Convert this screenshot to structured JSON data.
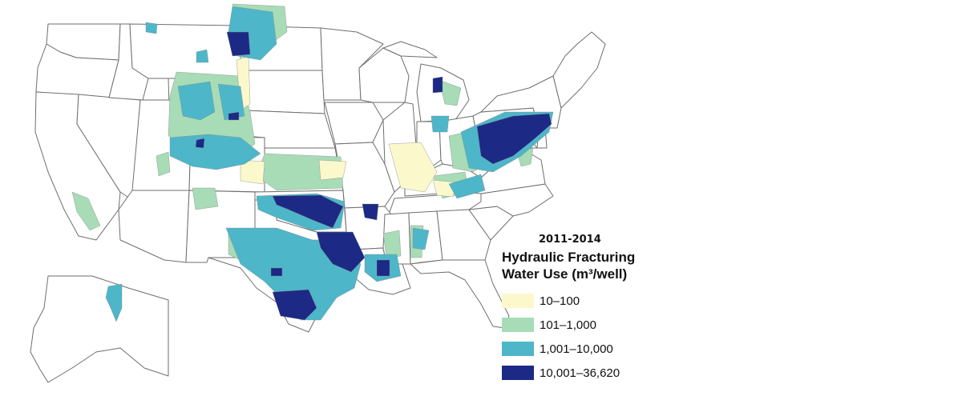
{
  "legend": {
    "year": "2011-2014",
    "title_line1": "Hydraulic Fracturing",
    "title_line2": "Water Use (m³/well)",
    "categories": [
      {
        "label": "10–100",
        "color": "#fbf8cc"
      },
      {
        "label": "101–1,000",
        "color": "#a7dcb6"
      },
      {
        "label": "1,001–10,000",
        "color": "#4db6c9"
      },
      {
        "label": "10,001–36,620",
        "color": "#1c2a85"
      }
    ]
  }
}
